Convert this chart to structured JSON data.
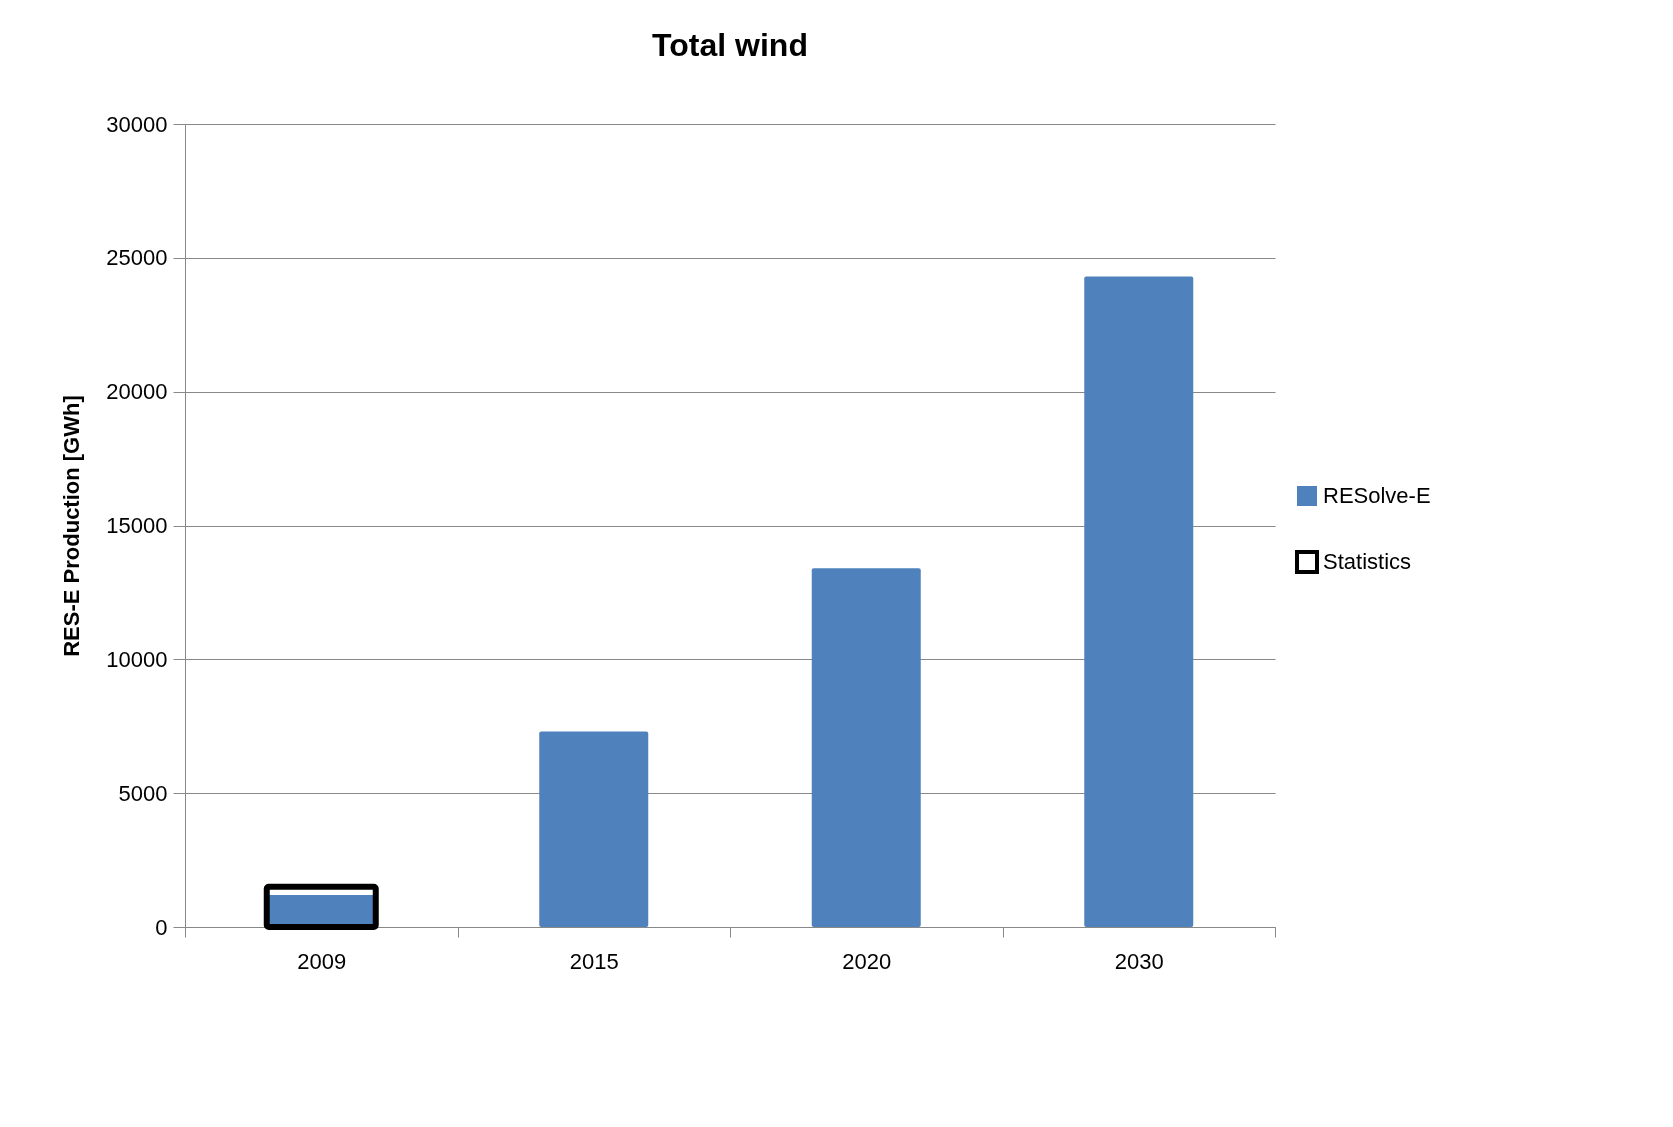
{
  "chart_data": {
    "type": "bar",
    "title": "Total wind",
    "ylabel": "RES-E Production [GWh]",
    "categories": [
      "2009",
      "2015",
      "2020",
      "2030"
    ],
    "series": [
      {
        "name": "RESolve-E",
        "color": "#4f81bd",
        "values": [
          1200,
          7300,
          13400,
          24300
        ]
      },
      {
        "name": "Statistics",
        "color": "#000000",
        "values": [
          1500,
          null,
          null,
          null
        ]
      }
    ],
    "ylim": [
      0,
      30000
    ],
    "yticks": [
      0,
      5000,
      10000,
      15000,
      20000,
      25000,
      30000
    ],
    "grid": "y",
    "legend": "right"
  }
}
